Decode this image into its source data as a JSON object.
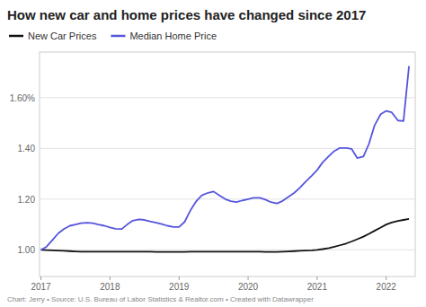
{
  "chart_data": {
    "type": "line",
    "title": "How new car and home prices have changed since 2017",
    "caption": "Chart: Jerry • Source: U.S. Bureau of Labor Statistics & Realtor.com • Created with Datawrapper",
    "x": [
      2017.0,
      2017.08,
      2017.17,
      2017.25,
      2017.33,
      2017.42,
      2017.5,
      2017.58,
      2017.67,
      2017.75,
      2017.83,
      2017.92,
      2018.0,
      2018.08,
      2018.17,
      2018.25,
      2018.33,
      2018.42,
      2018.5,
      2018.58,
      2018.67,
      2018.75,
      2018.83,
      2018.92,
      2019.0,
      2019.08,
      2019.17,
      2019.25,
      2019.33,
      2019.42,
      2019.5,
      2019.58,
      2019.67,
      2019.75,
      2019.83,
      2019.92,
      2020.0,
      2020.08,
      2020.17,
      2020.25,
      2020.33,
      2020.42,
      2020.5,
      2020.58,
      2020.67,
      2020.75,
      2020.83,
      2020.92,
      2021.0,
      2021.08,
      2021.17,
      2021.25,
      2021.33,
      2021.42,
      2021.5,
      2021.58,
      2021.67,
      2021.75,
      2021.83,
      2021.92,
      2022.0,
      2022.08,
      2022.17,
      2022.25,
      2022.33
    ],
    "series": [
      {
        "name": "New Car Prices",
        "color": "#111111",
        "values": [
          1.0,
          0.999,
          0.998,
          0.997,
          0.996,
          0.995,
          0.994,
          0.993,
          0.993,
          0.993,
          0.993,
          0.993,
          0.993,
          0.993,
          0.993,
          0.993,
          0.993,
          0.993,
          0.993,
          0.993,
          0.992,
          0.992,
          0.992,
          0.992,
          0.992,
          0.992,
          0.993,
          0.993,
          0.993,
          0.993,
          0.993,
          0.993,
          0.993,
          0.993,
          0.993,
          0.993,
          0.993,
          0.993,
          0.993,
          0.992,
          0.992,
          0.992,
          0.993,
          0.994,
          0.995,
          0.996,
          0.997,
          0.998,
          1.0,
          1.003,
          1.007,
          1.012,
          1.018,
          1.025,
          1.033,
          1.042,
          1.052,
          1.063,
          1.075,
          1.088,
          1.1,
          1.108,
          1.114,
          1.118,
          1.122
        ]
      },
      {
        "name": "Median Home Price",
        "color": "#5555dd",
        "values": [
          1.0,
          1.012,
          1.04,
          1.065,
          1.082,
          1.095,
          1.1,
          1.105,
          1.107,
          1.105,
          1.1,
          1.095,
          1.088,
          1.083,
          1.082,
          1.1,
          1.115,
          1.12,
          1.118,
          1.112,
          1.107,
          1.102,
          1.095,
          1.09,
          1.09,
          1.11,
          1.158,
          1.192,
          1.215,
          1.225,
          1.23,
          1.215,
          1.2,
          1.192,
          1.188,
          1.195,
          1.2,
          1.205,
          1.205,
          1.198,
          1.188,
          1.183,
          1.193,
          1.208,
          1.225,
          1.245,
          1.268,
          1.292,
          1.315,
          1.345,
          1.37,
          1.39,
          1.402,
          1.402,
          1.398,
          1.362,
          1.368,
          1.418,
          1.49,
          1.535,
          1.548,
          1.542,
          1.51,
          1.508,
          1.725
        ]
      }
    ],
    "xlim": [
      2016.98,
      2022.42
    ],
    "ylim": [
      0.895,
      1.78
    ],
    "xticks": [
      2017,
      2018,
      2019,
      2020,
      2021,
      2022
    ],
    "yticks": [
      {
        "value": 1.0,
        "label": "1.00"
      },
      {
        "value": 1.2,
        "label": "1.20"
      },
      {
        "value": 1.4,
        "label": "1.40"
      },
      {
        "value": 1.6,
        "label": "1.60%"
      }
    ],
    "grid": true,
    "legend": "top"
  }
}
